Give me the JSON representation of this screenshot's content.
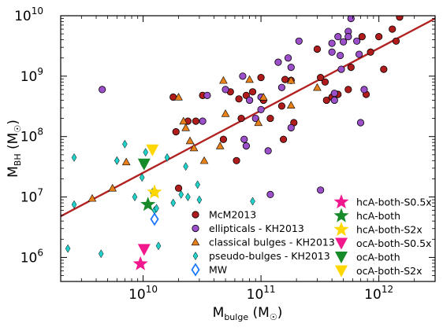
{
  "chart_data": {
    "type": "scatter",
    "x_scale": "log",
    "y_scale": "log",
    "xlim": [
      2000000000.0,
      3000000000000.0
    ],
    "ylim": [
      400000.0,
      10000000000.0
    ],
    "xlabel": {
      "base": "M",
      "sub": "bulge",
      "unit": " (M",
      "sun": "☉",
      "close": ")"
    },
    "ylabel": {
      "base": "M",
      "sub": "BH",
      "unit": " (M",
      "sun": "☉",
      "close": ")"
    },
    "x_ticks": [
      {
        "value": 10000000000.0,
        "base": "10",
        "exp": "10"
      },
      {
        "value": 100000000000.0,
        "base": "10",
        "exp": "11"
      },
      {
        "value": 1000000000000.0,
        "base": "10",
        "exp": "12"
      }
    ],
    "y_ticks": [
      {
        "value": 1000000.0,
        "base": "10",
        "exp": "6"
      },
      {
        "value": 10000000.0,
        "base": "10",
        "exp": "7"
      },
      {
        "value": 100000000.0,
        "base": "10",
        "exp": "8"
      },
      {
        "value": 1000000000.0,
        "base": "10",
        "exp": "9"
      },
      {
        "value": 10000000000.0,
        "base": "10",
        "exp": "10"
      }
    ],
    "grid": false,
    "legend_placement": "lower-right",
    "fit_line": {
      "color": "#b22222",
      "points": [
        [
          2000000000.0,
          4800000.0
        ],
        [
          3000000000000.0,
          9000000000.0
        ]
      ]
    },
    "series": [
      {
        "name": "McM2013",
        "marker": "circle",
        "color": "#b01c1c",
        "points": [
          [
            18000000000.0,
            450000000.0
          ],
          [
            19000000000.0,
            120000000.0
          ],
          [
            20000000000.0,
            14000000.0
          ],
          [
            24000000000.0,
            180000000.0
          ],
          [
            28000000000.0,
            180000000.0
          ],
          [
            32000000000.0,
            480000000.0
          ],
          [
            48000000000.0,
            90000000.0
          ],
          [
            55000000000.0,
            550000000.0
          ],
          [
            62000000000.0,
            40000000.0
          ],
          [
            65000000000.0,
            420000000.0
          ],
          [
            68000000000.0,
            200000000.0
          ],
          [
            75000000000.0,
            480000000.0
          ],
          [
            85000000000.0,
            550000000.0
          ],
          [
            100000000000.0,
            950000000.0
          ],
          [
            105000000000.0,
            400000000.0
          ],
          [
            120000000000.0,
            200000000.0
          ],
          [
            150000000000.0,
            320000000.0
          ],
          [
            155000000000.0,
            90000000.0
          ],
          [
            160000000000.0,
            880000000.0
          ],
          [
            180000000000.0,
            850000000.0
          ],
          [
            190000000000.0,
            170000000.0
          ],
          [
            300000000000.0,
            2800000000.0
          ],
          [
            320000000000.0,
            950000000.0
          ],
          [
            350000000000.0,
            800000000.0
          ],
          [
            360000000000.0,
            400000000.0
          ],
          [
            400000000000.0,
            450000000.0
          ],
          [
            450000000000.0,
            500000000.0
          ],
          [
            550000000000.0,
            600000000.0
          ],
          [
            580000000000.0,
            1400000000.0
          ],
          [
            720000000000.0,
            4500000000.0
          ],
          [
            780000000000.0,
            500000000.0
          ],
          [
            850000000000.0,
            2500000000.0
          ],
          [
            1000000000000.0,
            4500000000.0
          ],
          [
            1100000000000.0,
            1300000000.0
          ],
          [
            1300000000000.0,
            6000000000.0
          ],
          [
            1400000000000.0,
            3800000000.0
          ],
          [
            1500000000000.0,
            9500000000.0
          ]
        ]
      },
      {
        "name": "ellipticals - KH2013",
        "marker": "circle",
        "color": "#9b4fc9",
        "points": [
          [
            4500000000.0,
            600000000.0
          ],
          [
            12500000000.0,
            12000000.0
          ],
          [
            32000000000.0,
            180000000.0
          ],
          [
            35000000000.0,
            480000000.0
          ],
          [
            50000000000.0,
            600000000.0
          ],
          [
            70000000000.0,
            1000000000.0
          ],
          [
            75000000000.0,
            70000000.0
          ],
          [
            72000000000.0,
            90000000.0
          ],
          [
            80000000000.0,
            400000000.0
          ],
          [
            90000000000.0,
            200000000.0
          ],
          [
            100000000000.0,
            450000000.0
          ],
          [
            100000000000.0,
            280000000.0
          ],
          [
            115000000000.0,
            58000000.0
          ],
          [
            120000000000.0,
            11000000.0
          ],
          [
            140000000000.0,
            1700000000.0
          ],
          [
            150000000000.0,
            650000000.0
          ],
          [
            170000000000.0,
            2000000000.0
          ],
          [
            180000000000.0,
            1400000000.0
          ],
          [
            180000000000.0,
            140000000.0
          ],
          [
            210000000000.0,
            3800000000.0
          ],
          [
            320000000000.0,
            13000000.0
          ],
          [
            400000000000.0,
            3500000000.0
          ],
          [
            400000000000.0,
            2500000000.0
          ],
          [
            420000000000.0,
            520000000.0
          ],
          [
            420000000000.0,
            400000000.0
          ],
          [
            450000000000.0,
            4500000000.0
          ],
          [
            470000000000.0,
            2200000000.0
          ],
          [
            500000000000.0,
            3700000000.0
          ],
          [
            550000000000.0,
            5500000000.0
          ],
          [
            580000000000.0,
            9000000000.0
          ],
          [
            550000000000.0,
            4500000000.0
          ],
          [
            650000000000.0,
            3800000000.0
          ],
          [
            680000000000.0,
            2300000000.0
          ],
          [
            700000000000.0,
            170000000.0
          ],
          [
            750000000000.0,
            600000000.0
          ],
          [
            480000000000.0,
            1300000000.0
          ]
        ]
      },
      {
        "name": "classical bulges - KH2013",
        "marker": "triangle",
        "color": "#e8801a",
        "points": [
          [
            3700000000.0,
            9500000.0
          ],
          [
            5500000000.0,
            14000000.0
          ],
          [
            7200000000.0,
            38000000.0
          ],
          [
            20000000000.0,
            450000000.0
          ],
          [
            22000000000.0,
            180000000.0
          ],
          [
            23000000000.0,
            140000000.0
          ],
          [
            25000000000.0,
            85000000.0
          ],
          [
            27000000000.0,
            65000000.0
          ],
          [
            33000000000.0,
            40000000.0
          ],
          [
            45000000000.0,
            70000000.0
          ],
          [
            48000000000.0,
            850000000.0
          ],
          [
            50000000000.0,
            240000000.0
          ],
          [
            80000000000.0,
            880000000.0
          ],
          [
            95000000000.0,
            170000000.0
          ],
          [
            105000000000.0,
            450000000.0
          ],
          [
            180000000000.0,
            850000000.0
          ],
          [
            180000000000.0,
            330000000.0
          ],
          [
            300000000000.0,
            650000000.0
          ]
        ]
      },
      {
        "name": "pseudo-bulges - KH2013",
        "marker": "diamond",
        "color": "#1fd1c9",
        "points": [
          [
            2300000000.0,
            1400000.0
          ],
          [
            2600000000.0,
            45000000.0
          ],
          [
            2600000000.0,
            7500000.0
          ],
          [
            4400000000.0,
            1150000.0
          ],
          [
            6000000000.0,
            40000000.0
          ],
          [
            7000000000.0,
            75000000.0
          ],
          [
            8500000000.0,
            10000000.0
          ],
          [
            9800000000.0,
            21000000.0
          ],
          [
            10000000000.0,
            35000000.0
          ],
          [
            10500000000.0,
            55000000.0
          ],
          [
            12000000000.0,
            12000000.0
          ],
          [
            12500000000.0,
            6000000.0
          ],
          [
            13000000000.0,
            6500000.0
          ],
          [
            13500000000.0,
            1550000.0
          ],
          [
            16000000000.0,
            45000000.0
          ],
          [
            18000000000.0,
            8000000.0
          ],
          [
            21000000000.0,
            11000000.0
          ],
          [
            23000000000.0,
            32000000.0
          ],
          [
            24000000000.0,
            10000000.0
          ],
          [
            29000000000.0,
            16000000.0
          ],
          [
            30000000000.0,
            9000000.0
          ],
          [
            85000000000.0,
            8500000.0
          ],
          [
            6000000000.0,
            40000000.0
          ]
        ]
      },
      {
        "name": "MW",
        "marker": "diamond-open",
        "color": "#1e78ff",
        "points": [
          [
            12500000000.0,
            4300000.0
          ]
        ]
      },
      {
        "name": "hcA-both-S0.5x",
        "marker": "star",
        "color": "#f0188c",
        "points": [
          [
            9500000000.0,
            780000.0
          ]
        ]
      },
      {
        "name": "hcA-both",
        "marker": "star",
        "color": "#178a2a",
        "points": [
          [
            11000000000.0,
            7500000.0
          ]
        ]
      },
      {
        "name": "hcA-both-S2x",
        "marker": "star",
        "color": "#ffd700",
        "points": [
          [
            12500000000.0,
            12000000.0
          ]
        ]
      },
      {
        "name": "ocA-both-S0.5x",
        "marker": "triangle-down",
        "color": "#f0188c",
        "points": [
          [
            10200000000.0,
            1350000.0
          ]
        ]
      },
      {
        "name": "ocA-both",
        "marker": "triangle-down",
        "color": "#178a2a",
        "points": [
          [
            10200000000.0,
            35000000.0
          ]
        ]
      },
      {
        "name": "ocA-both-S2x",
        "marker": "triangle-down",
        "color": "#ffd700",
        "points": [
          [
            12000000000.0,
            60000000.0
          ]
        ]
      }
    ],
    "legend": {
      "col1": [
        "McM2013",
        "ellipticals - KH2013",
        "classical bulges - KH2013",
        "pseudo-bulges - KH2013",
        "MW"
      ],
      "col2": [
        "hcA-both-S0.5x",
        "hcA-both",
        "hcA-both-S2x",
        "ocA-both-S0.5x",
        "ocA-both",
        "ocA-both-S2x"
      ]
    }
  }
}
